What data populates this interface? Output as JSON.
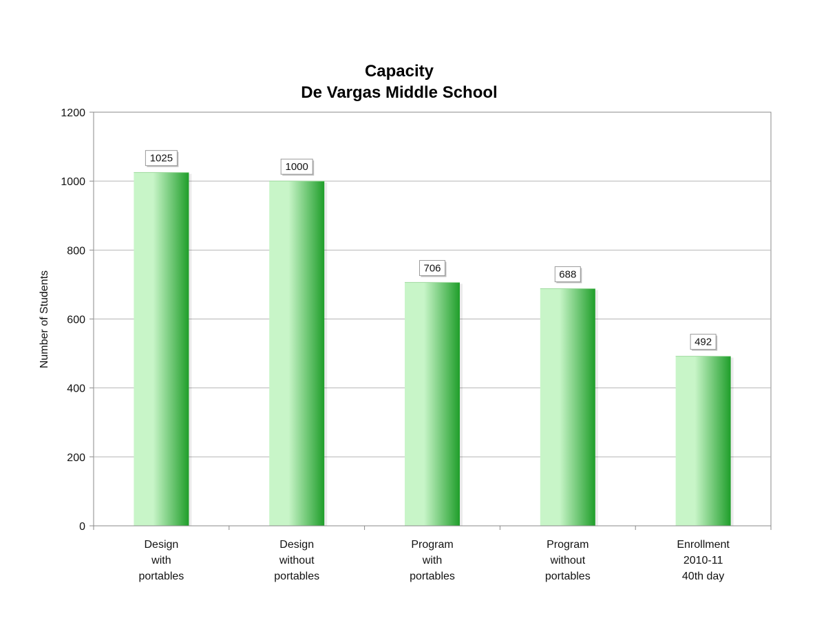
{
  "chart_data": {
    "type": "bar",
    "title": [
      "Capacity",
      "De Vargas Middle School"
    ],
    "ylabel": "Number of Students",
    "xlabel": "",
    "ylim": [
      0,
      1200
    ],
    "yticks": [
      0,
      200,
      400,
      600,
      800,
      1000,
      1200
    ],
    "grid": true,
    "categories": [
      [
        "Design",
        "with",
        "portables"
      ],
      [
        "Design",
        "without",
        "portables"
      ],
      [
        "Program",
        "with",
        "portables"
      ],
      [
        "Program",
        "without",
        "portables"
      ],
      [
        "Enrollment",
        "2010-11",
        "40th day"
      ]
    ],
    "values": [
      1025,
      1000,
      706,
      688,
      492
    ],
    "data_labels": [
      "1025",
      "1000",
      "706",
      "688",
      "492"
    ],
    "colors": {
      "bar_light": "#c8f5c8",
      "bar_dark": "#1f9e2a",
      "grid": "#b4b4b4",
      "axis": "#888888"
    }
  }
}
